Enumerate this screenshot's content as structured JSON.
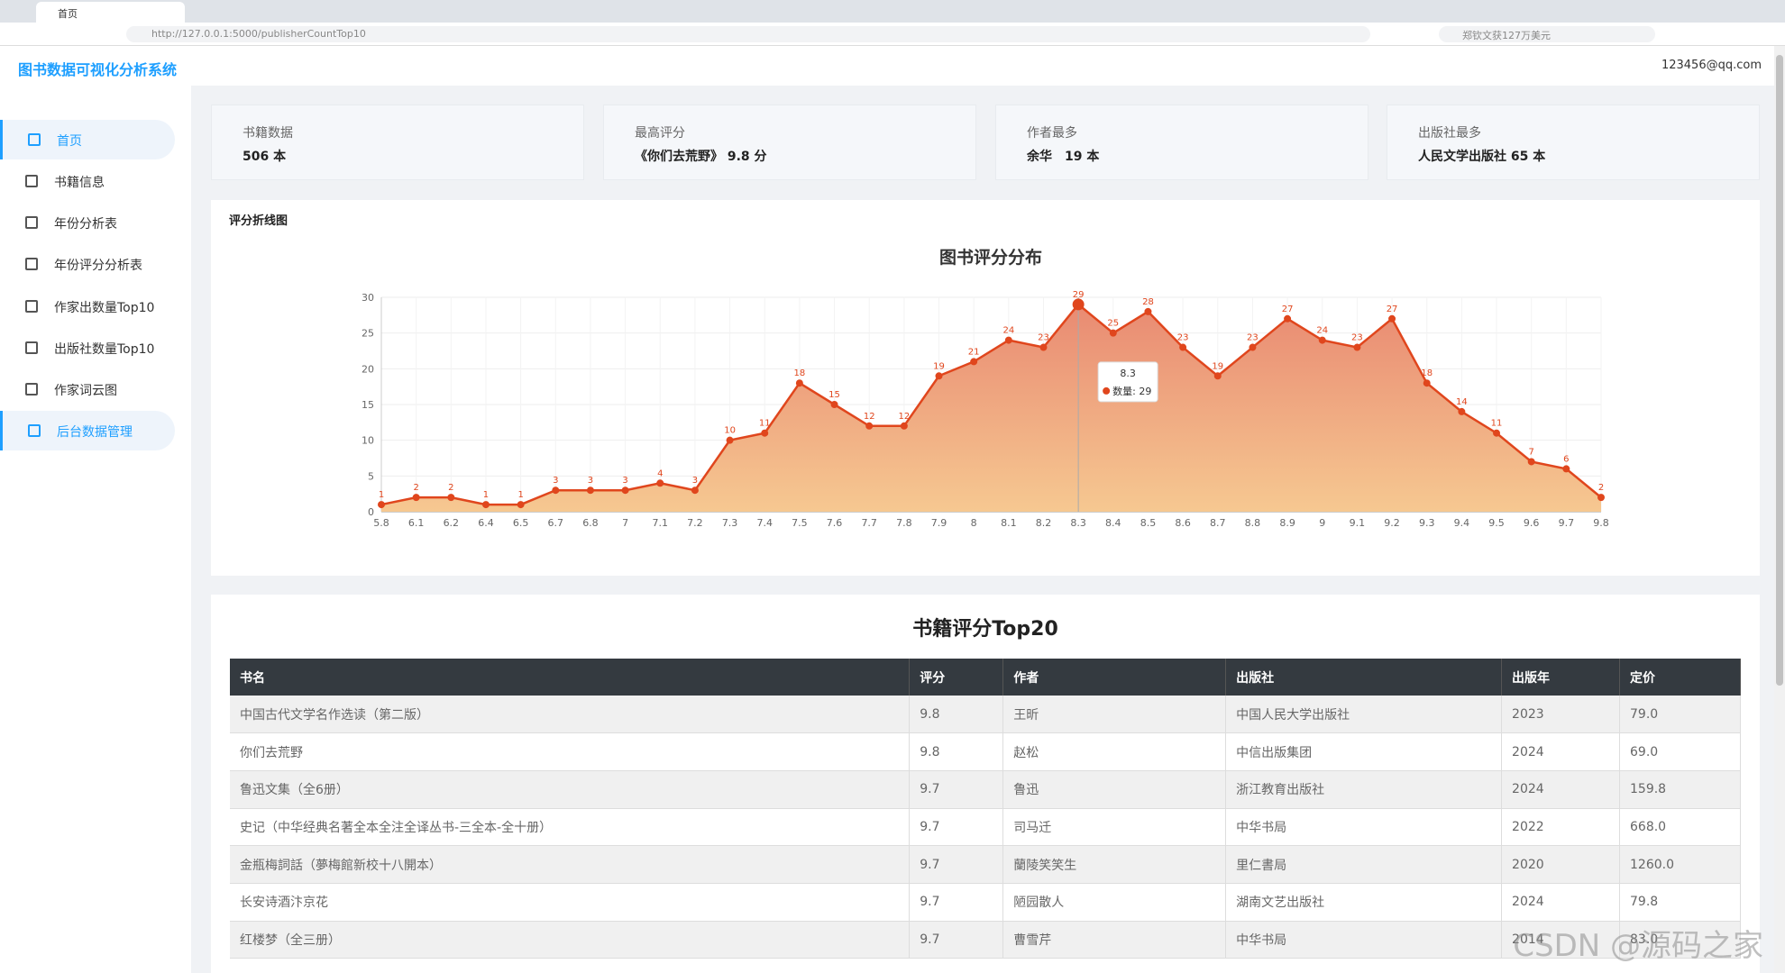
{
  "browser": {
    "tab": "首页",
    "url": "http://127.0.0.1:5000/publisherCountTop10",
    "search": "郑钦文获127万美元"
  },
  "header": {
    "title": "图书数据可视化分析系统",
    "user": "123456@qq.com"
  },
  "sidebar": {
    "items": [
      "首页",
      "书籍信息",
      "年份分析表",
      "年份评分分析表",
      "作家出数量Top10",
      "出版社数量Top10",
      "作家词云图",
      "后台数据管理"
    ]
  },
  "cards": [
    {
      "label": "书籍数据",
      "value": "506 本"
    },
    {
      "label": "最高评分",
      "value": "《你们去荒野》 9.8 分"
    },
    {
      "label": "作者最多",
      "value": "余华　19 本"
    },
    {
      "label": "出版社最多",
      "value": "人民文学出版社  65 本"
    }
  ],
  "chart_panel": {
    "title": "评分折线图"
  },
  "chart_data": {
    "type": "line",
    "title": "图书评分分布",
    "categories": [
      "5.8",
      "6.1",
      "6.2",
      "6.4",
      "6.5",
      "6.7",
      "6.8",
      "7",
      "7.1",
      "7.2",
      "7.3",
      "7.4",
      "7.5",
      "7.6",
      "7.7",
      "7.8",
      "7.9",
      "8",
      "8.1",
      "8.2",
      "8.3",
      "8.4",
      "8.5",
      "8.6",
      "8.7",
      "8.8",
      "8.9",
      "9",
      "9.1",
      "9.2",
      "9.3",
      "9.4",
      "9.5",
      "9.6",
      "9.7",
      "9.8"
    ],
    "series": [
      {
        "name": "数量",
        "color": "#e0461d",
        "values": [
          1,
          2,
          2,
          1,
          1,
          3,
          3,
          3,
          4,
          3,
          10,
          11,
          18,
          15,
          12,
          12,
          19,
          21,
          24,
          23,
          29,
          25,
          28,
          23,
          19,
          23,
          27,
          24,
          23,
          27,
          18,
          14,
          11,
          7,
          6,
          2
        ]
      }
    ],
    "ylim": [
      0,
      30
    ],
    "yticks": [
      0,
      5,
      10,
      15,
      20,
      25,
      30
    ],
    "grid": true,
    "tooltip": {
      "title": "8.3",
      "text": "数量: 29"
    }
  },
  "table": {
    "title": "书籍评分Top20",
    "columns": [
      "书名",
      "评分",
      "作者",
      "出版社",
      "出版年",
      "定价"
    ],
    "rows": [
      [
        "中国古代文学名作选读（第二版）",
        "9.8",
        "王昕",
        "中国人民大学出版社",
        "2023",
        "79.0"
      ],
      [
        "你们去荒野",
        "9.8",
        "赵松",
        "中信出版集团",
        "2024",
        "69.0"
      ],
      [
        "鲁迅文集（全6册）",
        "9.7",
        "鲁迅",
        "浙江教育出版社",
        "2024",
        "159.8"
      ],
      [
        "史记（中华经典名著全本全注全译丛书-三全本-全十册）",
        "9.7",
        "司马迁",
        "中华书局",
        "2022",
        "668.0"
      ],
      [
        "金瓶梅詞話（夢梅館新校十八開本）",
        "9.7",
        "蘭陵笑笑生",
        "里仁書局",
        "2020",
        "1260.0"
      ],
      [
        "长安诗酒汴京花",
        "9.7",
        "陋园散人",
        "湖南文艺出版社",
        "2024",
        "79.8"
      ],
      [
        "红楼梦（全三册）",
        "9.7",
        "曹雪芹",
        "中华书局",
        "2014",
        "83.0"
      ]
    ]
  },
  "watermark": "CSDN @源码之家"
}
